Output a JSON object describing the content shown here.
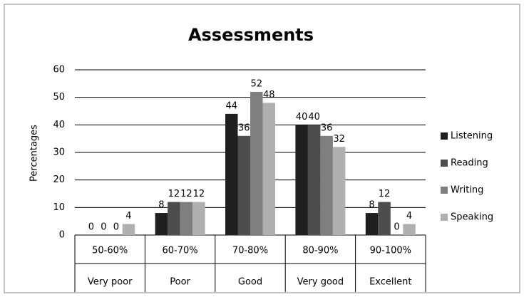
{
  "chart_data": {
    "type": "bar",
    "title": "Assessments",
    "y_label": "Percentages",
    "categories": [
      "50-60%",
      "60-70%",
      "70-80%",
      "80-90%",
      "90-100%"
    ],
    "category_labels": [
      "Very poor",
      "Poor",
      "Good",
      "Very good",
      "Excellent"
    ],
    "series": [
      {
        "name": "Listening",
        "color": "#1f1f1f",
        "values": [
          0,
          8,
          44,
          40,
          8
        ]
      },
      {
        "name": "Reading",
        "color": "#4d4d4d",
        "values": [
          0,
          12,
          36,
          40,
          12
        ]
      },
      {
        "name": "Writing",
        "color": "#7f7f7f",
        "values": [
          0,
          12,
          52,
          36,
          0
        ]
      },
      {
        "name": "Speaking",
        "color": "#b0b0b0",
        "values": [
          4,
          12,
          48,
          32,
          4
        ]
      }
    ],
    "ylim": [
      0,
      60
    ],
    "yticks": [
      0,
      10,
      20,
      30,
      40,
      50,
      60
    ],
    "grid": true,
    "legend": "right"
  }
}
